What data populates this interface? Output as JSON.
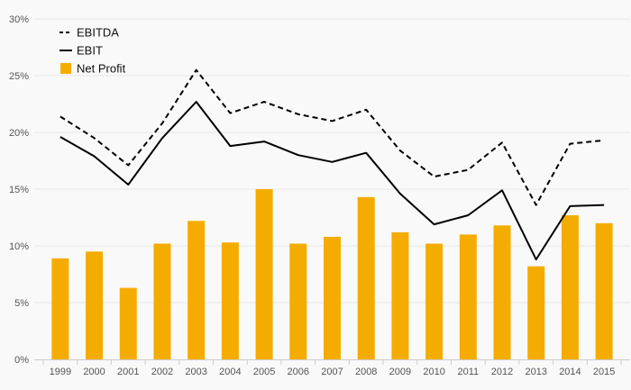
{
  "chart_data": {
    "type": "bar",
    "categories": [
      "1999",
      "2000",
      "2001",
      "2002",
      "2003",
      "2004",
      "2005",
      "2006",
      "2007",
      "2008",
      "2009",
      "2010",
      "2011",
      "2012",
      "2013",
      "2014",
      "2015"
    ],
    "series": [
      {
        "name": "EBITDA",
        "type": "line",
        "style": "dashed",
        "color": "#000000",
        "values": [
          21.4,
          19.5,
          17.1,
          20.8,
          25.5,
          21.7,
          22.7,
          21.6,
          21.0,
          22.0,
          18.4,
          16.1,
          16.7,
          19.1,
          13.6,
          19.0,
          19.3
        ]
      },
      {
        "name": "EBIT",
        "type": "line",
        "style": "solid",
        "color": "#000000",
        "values": [
          19.6,
          17.9,
          15.4,
          19.5,
          22.7,
          18.8,
          19.2,
          18.0,
          17.4,
          18.2,
          14.6,
          11.9,
          12.7,
          14.9,
          8.8,
          13.5,
          13.6
        ]
      },
      {
        "name": "Net Profit",
        "type": "bar",
        "color": "#f5ac00",
        "values": [
          8.9,
          9.5,
          6.3,
          10.2,
          12.2,
          10.3,
          15.0,
          10.2,
          10.8,
          14.3,
          11.2,
          10.2,
          11.0,
          11.8,
          8.2,
          12.7,
          12.0
        ]
      }
    ],
    "y_ticks": [
      "0%",
      "5%",
      "10%",
      "15%",
      "20%",
      "25%",
      "30%"
    ],
    "ylim": [
      0,
      30
    ],
    "title": "",
    "xlabel": "",
    "ylabel": "",
    "grid": true,
    "legend_position": "top-left",
    "background": "#f9f9f9",
    "grid_color": "#e6e6e6"
  }
}
